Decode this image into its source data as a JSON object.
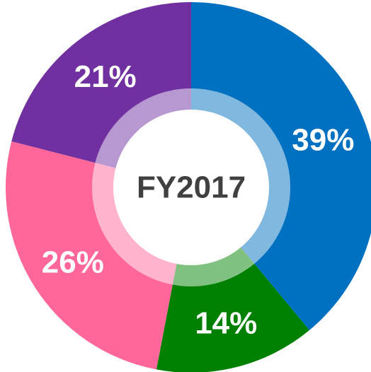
{
  "chart_data": {
    "type": "pie",
    "values": [
      39,
      14,
      26,
      21
    ],
    "value_labels": [
      "39%",
      "14%",
      "26%",
      "21%"
    ],
    "colors": [
      "#0070c0",
      "#008000",
      "#ff6699",
      "#7030a0"
    ],
    "center_label": "FY2017"
  }
}
